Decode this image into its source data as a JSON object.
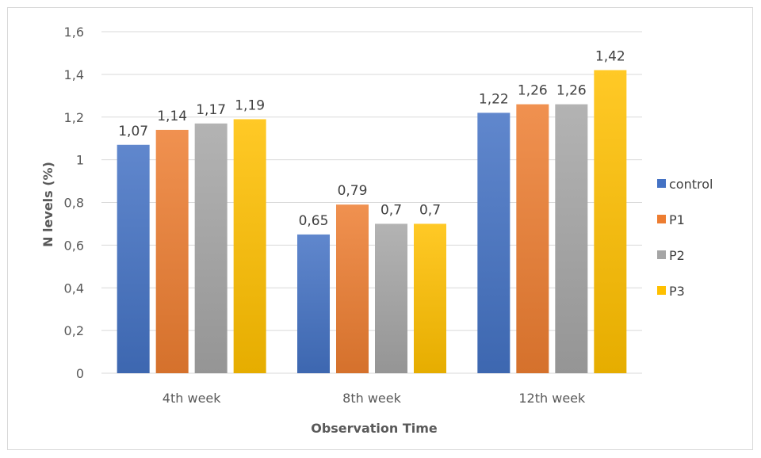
{
  "chart_data": {
    "type": "bar",
    "title": "",
    "xlabel": "Observation Time",
    "ylabel": "N levels (%)",
    "categories": [
      "4th week",
      "8th week",
      "12th week"
    ],
    "series": [
      {
        "name": "control",
        "color": "#4472C4",
        "values": [
          1.07,
          0.65,
          1.22
        ],
        "labels": [
          "1,07",
          "0,65",
          "1,22"
        ]
      },
      {
        "name": "P1",
        "color": "#ED7D31",
        "values": [
          1.14,
          0.79,
          1.26
        ],
        "labels": [
          "1,14",
          "0,79",
          "1,26"
        ]
      },
      {
        "name": "P2",
        "color": "#A5A5A5",
        "values": [
          1.17,
          0.7,
          1.26
        ],
        "labels": [
          "1,17",
          "0,7",
          "1,26"
        ]
      },
      {
        "name": "P3",
        "color": "#FFC000",
        "values": [
          1.19,
          0.7,
          1.42
        ],
        "labels": [
          "1,19",
          "0,7",
          "1,42"
        ]
      }
    ],
    "ylim": [
      0,
      1.6
    ],
    "yticks": [
      0,
      0.2,
      0.4,
      0.6,
      0.8,
      1.0,
      1.2,
      1.4,
      1.6
    ],
    "ytick_labels": [
      "0",
      "0,2",
      "0,4",
      "0,6",
      "0,8",
      "1",
      "1,2",
      "1,4",
      "1,6"
    ],
    "grid": true,
    "legend": "right"
  }
}
